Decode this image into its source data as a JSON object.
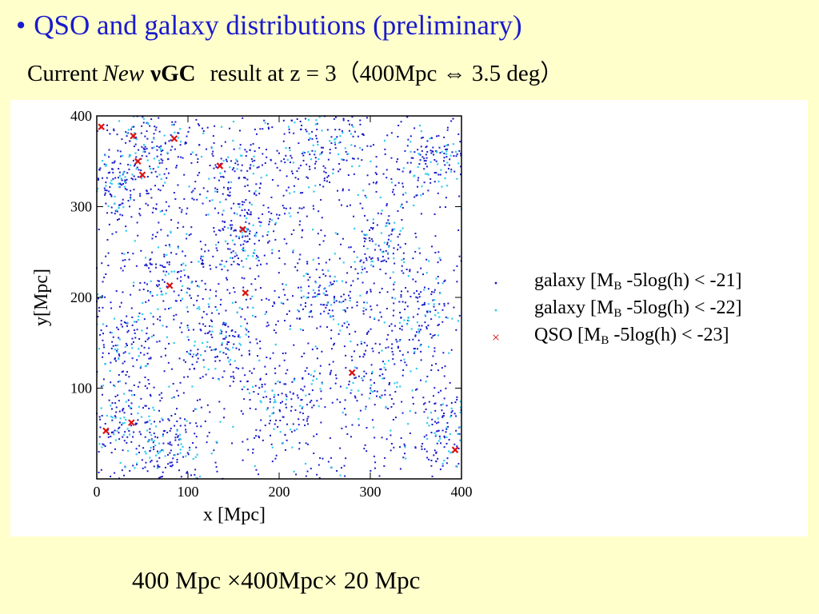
{
  "slide": {
    "title_bullet": "•",
    "title": "QSO and galaxy distributions (preliminary)",
    "subtitle": {
      "prefix": "Current",
      "italic": "New",
      "bold": "νGC",
      "rest": "result at z = 3（400Mpc ⇔   3.5 deg）"
    },
    "footer": "400 Mpc  ×400Mpc×  20 Mpc"
  },
  "colors": {
    "title": "#1a1acc",
    "galaxy_21": "#1a1acc",
    "galaxy_22": "#33ccee",
    "qso": "#dd1111",
    "background": "#ffffcc"
  },
  "chart_data": {
    "type": "scatter",
    "xlabel": "x [Mpc]",
    "ylabel": "y[Mpc]",
    "xlim": [
      0,
      400
    ],
    "ylim": [
      0,
      400
    ],
    "x_ticks": [
      "0",
      "100",
      "200",
      "300",
      "400"
    ],
    "y_ticks": [
      "100",
      "200",
      "300",
      "400"
    ],
    "grid": false,
    "legend_position": "right",
    "legend": [
      {
        "marker": "·",
        "label_pre": "galaxy [M",
        "label_sub": "B",
        "label_post": " -5log(h) < -21]"
      },
      {
        "marker": "·",
        "label_pre": "galaxy [M",
        "label_sub": "B",
        "label_post": " -5log(h) < -22]"
      },
      {
        "marker": "×",
        "label_pre": "QSO    [M",
        "label_sub": "B",
        "label_post": " -5log(h) < -23]"
      }
    ],
    "qso_points": [
      {
        "x": 5,
        "y": 388
      },
      {
        "x": 40,
        "y": 378
      },
      {
        "x": 85,
        "y": 375
      },
      {
        "x": 45,
        "y": 350
      },
      {
        "x": 50,
        "y": 335
      },
      {
        "x": 135,
        "y": 345
      },
      {
        "x": 160,
        "y": 275
      },
      {
        "x": 80,
        "y": 213
      },
      {
        "x": 163,
        "y": 205
      },
      {
        "x": 280,
        "y": 117
      },
      {
        "x": 38,
        "y": 62
      },
      {
        "x": 10,
        "y": 53
      },
      {
        "x": 393,
        "y": 32
      }
    ],
    "galaxy_clusters": [
      {
        "x": 60,
        "y": 370,
        "r": 35
      },
      {
        "x": 20,
        "y": 320,
        "r": 30
      },
      {
        "x": 150,
        "y": 340,
        "r": 40
      },
      {
        "x": 260,
        "y": 360,
        "r": 45
      },
      {
        "x": 370,
        "y": 350,
        "r": 35
      },
      {
        "x": 160,
        "y": 270,
        "r": 30
      },
      {
        "x": 80,
        "y": 220,
        "r": 40
      },
      {
        "x": 310,
        "y": 260,
        "r": 40
      },
      {
        "x": 250,
        "y": 200,
        "r": 35
      },
      {
        "x": 360,
        "y": 180,
        "r": 35
      },
      {
        "x": 300,
        "y": 120,
        "r": 45
      },
      {
        "x": 30,
        "y": 60,
        "r": 35
      },
      {
        "x": 80,
        "y": 30,
        "r": 35
      },
      {
        "x": 200,
        "y": 90,
        "r": 40
      },
      {
        "x": 380,
        "y": 50,
        "r": 35
      },
      {
        "x": 130,
        "y": 150,
        "r": 35
      },
      {
        "x": 30,
        "y": 150,
        "r": 30
      }
    ]
  }
}
